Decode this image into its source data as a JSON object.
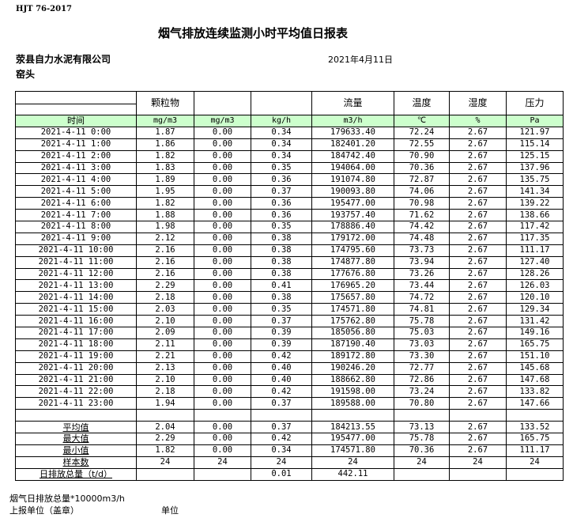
{
  "standard": "HJT  76-2017",
  "title": "烟气排放连续监测小时平均值日报表",
  "company": "荥县自力水泥有限公司",
  "date": "2021年4月11日",
  "unit": "窑头",
  "columns": [
    {
      "name": "",
      "unit": "时间"
    },
    {
      "name": "颗粒物",
      "unit": "mg/m3"
    },
    {
      "name": "",
      "unit": "mg/m3"
    },
    {
      "name": "",
      "unit": "kg/h"
    },
    {
      "name": "流量",
      "unit": "m3/h"
    },
    {
      "name": "温度",
      "unit": "℃"
    },
    {
      "name": "湿度",
      "unit": "%"
    },
    {
      "name": "压力",
      "unit": "Pa"
    }
  ],
  "header_fill": "#ccffcc",
  "rows": [
    [
      "2021-4-11 0:00",
      "1.87",
      "0.00",
      "0.34",
      "179633.40",
      "72.24",
      "2.67",
      "121.97"
    ],
    [
      "2021-4-11 1:00",
      "1.86",
      "0.00",
      "0.34",
      "182401.20",
      "72.55",
      "2.67",
      "115.14"
    ],
    [
      "2021-4-11 2:00",
      "1.82",
      "0.00",
      "0.34",
      "184742.40",
      "70.90",
      "2.67",
      "125.15"
    ],
    [
      "2021-4-11 3:00",
      "1.83",
      "0.00",
      "0.35",
      "194064.00",
      "70.36",
      "2.67",
      "137.96"
    ],
    [
      "2021-4-11 4:00",
      "1.89",
      "0.00",
      "0.36",
      "191074.80",
      "72.87",
      "2.67",
      "135.75"
    ],
    [
      "2021-4-11 5:00",
      "1.95",
      "0.00",
      "0.37",
      "190093.80",
      "74.06",
      "2.67",
      "141.34"
    ],
    [
      "2021-4-11 6:00",
      "1.82",
      "0.00",
      "0.36",
      "195477.00",
      "70.98",
      "2.67",
      "139.22"
    ],
    [
      "2021-4-11 7:00",
      "1.88",
      "0.00",
      "0.36",
      "193757.40",
      "71.62",
      "2.67",
      "138.66"
    ],
    [
      "2021-4-11 8:00",
      "1.98",
      "0.00",
      "0.35",
      "178886.40",
      "74.42",
      "2.67",
      "117.42"
    ],
    [
      "2021-4-11 9:00",
      "2.12",
      "0.00",
      "0.38",
      "179172.00",
      "74.48",
      "2.67",
      "117.35"
    ],
    [
      "2021-4-11 10:00",
      "2.16",
      "0.00",
      "0.38",
      "174795.60",
      "73.73",
      "2.67",
      "111.17"
    ],
    [
      "2021-4-11 11:00",
      "2.16",
      "0.00",
      "0.38",
      "174877.80",
      "73.94",
      "2.67",
      "127.40"
    ],
    [
      "2021-4-11 12:00",
      "2.16",
      "0.00",
      "0.38",
      "177676.80",
      "73.26",
      "2.67",
      "128.26"
    ],
    [
      "2021-4-11 13:00",
      "2.29",
      "0.00",
      "0.41",
      "176965.20",
      "73.44",
      "2.67",
      "126.03"
    ],
    [
      "2021-4-11 14:00",
      "2.18",
      "0.00",
      "0.38",
      "175657.80",
      "74.72",
      "2.67",
      "120.10"
    ],
    [
      "2021-4-11 15:00",
      "2.03",
      "0.00",
      "0.35",
      "174571.80",
      "74.81",
      "2.67",
      "129.34"
    ],
    [
      "2021-4-11 16:00",
      "2.10",
      "0.00",
      "0.37",
      "175762.80",
      "75.78",
      "2.67",
      "131.42"
    ],
    [
      "2021-4-11 17:00",
      "2.09",
      "0.00",
      "0.39",
      "185056.80",
      "75.03",
      "2.67",
      "149.16"
    ],
    [
      "2021-4-11 18:00",
      "2.11",
      "0.00",
      "0.39",
      "187190.40",
      "73.03",
      "2.67",
      "165.75"
    ],
    [
      "2021-4-11 19:00",
      "2.21",
      "0.00",
      "0.42",
      "189172.80",
      "73.30",
      "2.67",
      "151.10"
    ],
    [
      "2021-4-11 20:00",
      "2.13",
      "0.00",
      "0.40",
      "190246.20",
      "72.77",
      "2.67",
      "145.68"
    ],
    [
      "2021-4-11 21:00",
      "2.10",
      "0.00",
      "0.40",
      "188662.80",
      "72.86",
      "2.67",
      "147.68"
    ],
    [
      "2021-4-11 22:00",
      "2.18",
      "0.00",
      "0.42",
      "191598.00",
      "73.24",
      "2.67",
      "133.82"
    ],
    [
      "2021-4-11 23:00",
      "1.94",
      "0.00",
      "0.37",
      "189588.00",
      "70.80",
      "2.67",
      "147.66"
    ]
  ],
  "stats": [
    [
      "平均值",
      "2.04",
      "0.00",
      "0.37",
      "184213.55",
      "73.13",
      "2.67",
      "133.52"
    ],
    [
      "最大值",
      "2.29",
      "0.00",
      "0.42",
      "195477.00",
      "75.78",
      "2.67",
      "165.75"
    ],
    [
      "最小值",
      "1.82",
      "0.00",
      "0.34",
      "174571.80",
      "70.36",
      "2.67",
      "111.17"
    ],
    [
      "样本数",
      "24",
      "24",
      "24",
      "24",
      "24",
      "24",
      "24"
    ],
    [
      "日排放总量（t/d）",
      "",
      "",
      "0.01",
      "442.11",
      "",
      "",
      ""
    ]
  ],
  "footer": {
    "line1": "烟气日排放总量*10000m3/h",
    "line2": "上报单位（盖章）",
    "line2_right": "单位"
  }
}
